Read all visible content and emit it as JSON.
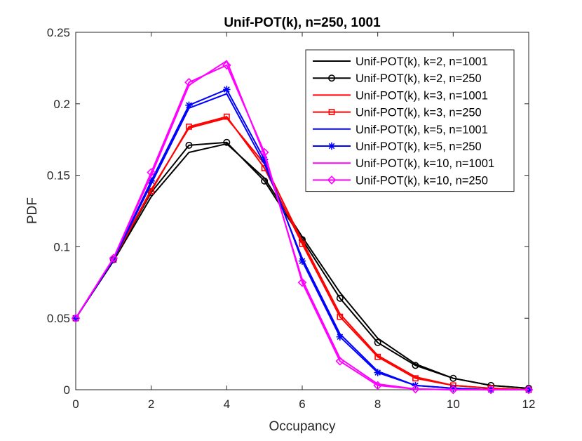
{
  "chart_data": {
    "type": "line",
    "title": "Unif-POT(k), n=250, 1001",
    "xlabel": "Occupancy",
    "ylabel": "PDF",
    "xlim": [
      0,
      12
    ],
    "ylim": [
      0,
      0.25
    ],
    "xticks": [
      0,
      2,
      4,
      6,
      8,
      10,
      12
    ],
    "xtick_labels": [
      "0",
      "2",
      "4",
      "6",
      "8",
      "10",
      "12"
    ],
    "yticks": [
      0,
      0.05,
      0.1,
      0.15,
      0.2,
      0.25
    ],
    "ytick_labels": [
      "0",
      "0.05",
      "0.1",
      "0.15",
      "0.2",
      "0.25"
    ],
    "grid": false,
    "legend_position": "top-right",
    "x": [
      0,
      1,
      2,
      3,
      4,
      5,
      6,
      7,
      8,
      9,
      10,
      11,
      12
    ],
    "series": [
      {
        "name": "Unif-POT(k), k=2, n=1001",
        "color": "#000000",
        "marker": "none",
        "values": [
          0.05,
          0.09,
          0.135,
          0.166,
          0.172,
          0.148,
          0.107,
          0.068,
          0.036,
          0.018,
          0.008,
          0.003,
          0.001
        ]
      },
      {
        "name": "Unif-POT(k), k=2, n=250",
        "color": "#000000",
        "marker": "circle",
        "values": [
          0.05,
          0.091,
          0.138,
          0.171,
          0.173,
          0.146,
          0.105,
          0.064,
          0.033,
          0.017,
          0.008,
          0.003,
          0.001
        ]
      },
      {
        "name": "Unif-POT(k), k=3, n=1001",
        "color": "#ff0000",
        "marker": "none",
        "values": [
          0.05,
          0.091,
          0.14,
          0.183,
          0.19,
          0.158,
          0.104,
          0.053,
          0.024,
          0.009,
          0.003,
          0.001,
          0.0
        ]
      },
      {
        "name": "Unif-POT(k), k=3, n=250",
        "color": "#ff0000",
        "marker": "square",
        "values": [
          0.05,
          0.091,
          0.139,
          0.184,
          0.191,
          0.155,
          0.102,
          0.051,
          0.023,
          0.008,
          0.003,
          0.001,
          0.0
        ]
      },
      {
        "name": "Unif-POT(k), k=5, n=1001",
        "color": "#0000ff",
        "marker": "none",
        "values": [
          0.05,
          0.091,
          0.144,
          0.197,
          0.207,
          0.158,
          0.092,
          0.039,
          0.013,
          0.003,
          0.001,
          0.0,
          0.0
        ]
      },
      {
        "name": "Unif-POT(k), k=5, n=250",
        "color": "#0000ff",
        "marker": "star",
        "values": [
          0.05,
          0.091,
          0.146,
          0.199,
          0.21,
          0.161,
          0.09,
          0.037,
          0.012,
          0.003,
          0.001,
          0.0,
          0.0
        ]
      },
      {
        "name": "Unif-POT(k), k=10, n=1001",
        "color": "#ff00ff",
        "marker": "none",
        "values": [
          0.05,
          0.092,
          0.15,
          0.213,
          0.23,
          0.164,
          0.077,
          0.022,
          0.004,
          0.0005,
          0.0,
          0.0,
          0.0
        ]
      },
      {
        "name": "Unif-POT(k), k=10, n=250",
        "color": "#ff00ff",
        "marker": "diamond",
        "values": [
          0.05,
          0.092,
          0.152,
          0.215,
          0.227,
          0.166,
          0.075,
          0.02,
          0.003,
          0.0005,
          0.0,
          0.0,
          0.0
        ]
      }
    ]
  }
}
